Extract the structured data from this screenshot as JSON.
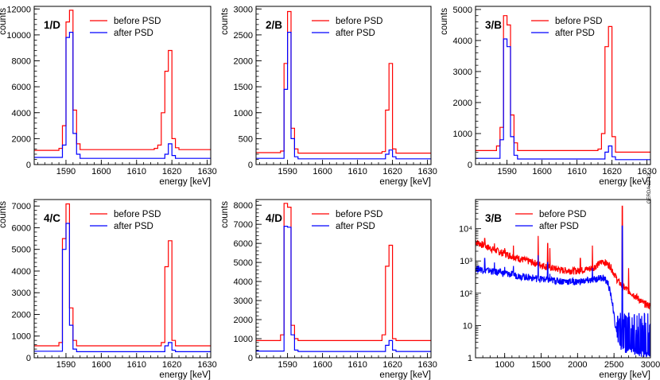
{
  "colors": {
    "before": "#ff0000",
    "after": "#0000ff",
    "axis": "#000000"
  },
  "side_label": "GERDA 12-12",
  "chart_data": [
    {
      "type": "histogram",
      "id": "p1",
      "panel_label": "1/D",
      "xlabel": "energy [keV]",
      "ylabel": "counts",
      "xlim": [
        1581,
        1631
      ],
      "ylim": [
        0,
        12200
      ],
      "xticks": [
        1590,
        1600,
        1610,
        1620,
        1630
      ],
      "yticks": [
        0,
        2000,
        4000,
        6000,
        8000,
        10000,
        12000
      ],
      "legend": [
        "before PSD",
        "after PSD"
      ],
      "series": [
        {
          "name": "before PSD",
          "bins": [
            [
              1581,
              1588,
              1100
            ],
            [
              1588,
              1589,
              1250
            ],
            [
              1589,
              1590,
              3000
            ],
            [
              1590,
              1591,
              11000
            ],
            [
              1591,
              1592,
              11900
            ],
            [
              1592,
              1593,
              4200
            ],
            [
              1593,
              1594,
              1600
            ],
            [
              1594,
              1615,
              1150
            ],
            [
              1615,
              1616,
              1250
            ],
            [
              1616,
              1617,
              1500
            ],
            [
              1617,
              1618,
              4000
            ],
            [
              1618,
              1619,
              7200
            ],
            [
              1619,
              1620,
              8800
            ],
            [
              1620,
              1621,
              2000
            ],
            [
              1621,
              1622,
              1300
            ],
            [
              1622,
              1631,
              1150
            ]
          ]
        },
        {
          "name": "after PSD",
          "bins": [
            [
              1581,
              1589,
              550
            ],
            [
              1589,
              1590,
              1500
            ],
            [
              1590,
              1591,
              9800
            ],
            [
              1591,
              1592,
              10200
            ],
            [
              1592,
              1593,
              2400
            ],
            [
              1593,
              1594,
              800
            ],
            [
              1594,
              1618,
              480
            ],
            [
              1618,
              1619,
              800
            ],
            [
              1619,
              1620,
              1600
            ],
            [
              1620,
              1621,
              700
            ],
            [
              1621,
              1631,
              480
            ]
          ]
        }
      ]
    },
    {
      "type": "histogram",
      "id": "p2",
      "panel_label": "2/B",
      "xlabel": "energy [keV]",
      "ylabel": "counts",
      "xlim": [
        1581,
        1631
      ],
      "ylim": [
        0,
        3050
      ],
      "xticks": [
        1590,
        1600,
        1610,
        1620,
        1630
      ],
      "yticks": [
        0,
        500,
        1000,
        1500,
        2000,
        2500,
        3000
      ],
      "legend": [
        "before PSD",
        "after PSD"
      ],
      "series": [
        {
          "name": "before PSD",
          "bins": [
            [
              1581,
              1588,
              230
            ],
            [
              1588,
              1589,
              260
            ],
            [
              1589,
              1590,
              1950
            ],
            [
              1590,
              1591,
              2950
            ],
            [
              1591,
              1592,
              700
            ],
            [
              1592,
              1593,
              300
            ],
            [
              1593,
              1617,
              220
            ],
            [
              1617,
              1618,
              250
            ],
            [
              1618,
              1619,
              1050
            ],
            [
              1619,
              1620,
              1950
            ],
            [
              1620,
              1621,
              300
            ],
            [
              1621,
              1631,
              220
            ]
          ]
        },
        {
          "name": "after PSD",
          "bins": [
            [
              1581,
              1589,
              120
            ],
            [
              1589,
              1590,
              1450
            ],
            [
              1590,
              1591,
              2550
            ],
            [
              1591,
              1592,
              500
            ],
            [
              1592,
              1593,
              150
            ],
            [
              1593,
              1618,
              110
            ],
            [
              1618,
              1619,
              200
            ],
            [
              1619,
              1620,
              280
            ],
            [
              1620,
              1621,
              150
            ],
            [
              1621,
              1631,
              110
            ]
          ]
        }
      ]
    },
    {
      "type": "histogram",
      "id": "p3",
      "panel_label": "3/B",
      "xlabel": "energy [keV]",
      "ylabel": "counts",
      "xlim": [
        1581,
        1631
      ],
      "ylim": [
        0,
        5100
      ],
      "xticks": [
        1590,
        1600,
        1610,
        1620,
        1630
      ],
      "yticks": [
        0,
        1000,
        2000,
        3000,
        4000,
        5000
      ],
      "legend": [
        "before PSD",
        "after PSD"
      ],
      "series": [
        {
          "name": "before PSD",
          "bins": [
            [
              1581,
              1587,
              450
            ],
            [
              1587,
              1588,
              600
            ],
            [
              1588,
              1589,
              1200
            ],
            [
              1589,
              1590,
              4800
            ],
            [
              1590,
              1591,
              4500
            ],
            [
              1591,
              1592,
              1600
            ],
            [
              1592,
              1593,
              700
            ],
            [
              1593,
              1616,
              450
            ],
            [
              1616,
              1617,
              500
            ],
            [
              1617,
              1618,
              1000
            ],
            [
              1618,
              1619,
              3800
            ],
            [
              1619,
              1620,
              4450
            ],
            [
              1620,
              1621,
              900
            ],
            [
              1621,
              1631,
              400
            ]
          ]
        },
        {
          "name": "after PSD",
          "bins": [
            [
              1581,
              1588,
              200
            ],
            [
              1588,
              1589,
              800
            ],
            [
              1589,
              1590,
              4050
            ],
            [
              1590,
              1591,
              3800
            ],
            [
              1591,
              1592,
              900
            ],
            [
              1592,
              1593,
              300
            ],
            [
              1593,
              1618,
              180
            ],
            [
              1618,
              1619,
              400
            ],
            [
              1619,
              1620,
              600
            ],
            [
              1620,
              1621,
              250
            ],
            [
              1621,
              1631,
              160
            ]
          ]
        }
      ]
    },
    {
      "type": "histogram",
      "id": "p4",
      "panel_label": "4/C",
      "xlabel": "energy [keV]",
      "ylabel": "counts",
      "xlim": [
        1581,
        1631
      ],
      "ylim": [
        0,
        7300
      ],
      "xticks": [
        1590,
        1600,
        1610,
        1620,
        1630
      ],
      "yticks": [
        0,
        1000,
        2000,
        3000,
        4000,
        5000,
        6000,
        7000
      ],
      "legend": [
        "before PSD",
        "after PSD"
      ],
      "series": [
        {
          "name": "before PSD",
          "bins": [
            [
              1581,
              1588,
              550
            ],
            [
              1588,
              1589,
              700
            ],
            [
              1589,
              1590,
              5500
            ],
            [
              1590,
              1591,
              7100
            ],
            [
              1591,
              1592,
              2300
            ],
            [
              1592,
              1593,
              800
            ],
            [
              1593,
              1617,
              550
            ],
            [
              1617,
              1618,
              700
            ],
            [
              1618,
              1619,
              4200
            ],
            [
              1619,
              1620,
              5400
            ],
            [
              1620,
              1621,
              800
            ],
            [
              1621,
              1631,
              550
            ]
          ]
        },
        {
          "name": "after PSD",
          "bins": [
            [
              1581,
              1589,
              300
            ],
            [
              1589,
              1590,
              5000
            ],
            [
              1590,
              1591,
              6200
            ],
            [
              1591,
              1592,
              1500
            ],
            [
              1592,
              1593,
              400
            ],
            [
              1593,
              1618,
              280
            ],
            [
              1618,
              1619,
              550
            ],
            [
              1619,
              1620,
              700
            ],
            [
              1620,
              1621,
              350
            ],
            [
              1621,
              1631,
              280
            ]
          ]
        }
      ]
    },
    {
      "type": "histogram",
      "id": "p5",
      "panel_label": "4/D",
      "xlabel": "energy [keV]",
      "ylabel": "counts",
      "xlim": [
        1581,
        1631
      ],
      "ylim": [
        0,
        8300
      ],
      "xticks": [
        1590,
        1600,
        1610,
        1620,
        1630
      ],
      "yticks": [
        0,
        1000,
        2000,
        3000,
        4000,
        5000,
        6000,
        7000,
        8000
      ],
      "legend": [
        "before PSD",
        "after PSD"
      ],
      "series": [
        {
          "name": "before PSD",
          "bins": [
            [
              1581,
              1588,
              900
            ],
            [
              1588,
              1589,
              1200
            ],
            [
              1589,
              1590,
              8100
            ],
            [
              1590,
              1591,
              7900
            ],
            [
              1591,
              1592,
              1700
            ],
            [
              1592,
              1593,
              1000
            ],
            [
              1593,
              1617,
              900
            ],
            [
              1617,
              1618,
              1200
            ],
            [
              1618,
              1619,
              4800
            ],
            [
              1619,
              1620,
              5900
            ],
            [
              1620,
              1621,
              1000
            ],
            [
              1621,
              1631,
              900
            ]
          ]
        },
        {
          "name": "after PSD",
          "bins": [
            [
              1581,
              1589,
              350
            ],
            [
              1589,
              1590,
              6900
            ],
            [
              1590,
              1591,
              6850
            ],
            [
              1591,
              1592,
              1200
            ],
            [
              1592,
              1593,
              400
            ],
            [
              1593,
              1618,
              330
            ],
            [
              1618,
              1619,
              650
            ],
            [
              1619,
              1620,
              900
            ],
            [
              1620,
              1621,
              400
            ],
            [
              1621,
              1631,
              330
            ]
          ]
        }
      ]
    },
    {
      "type": "histogram",
      "id": "p6",
      "panel_label": "3/B",
      "yscale": "log",
      "xlabel": "energy [keV]",
      "ylabel": "",
      "xlim": [
        600,
        3000
      ],
      "ylim": [
        1,
        80000
      ],
      "xticks": [
        1000,
        1500,
        2000,
        2500,
        3000
      ],
      "yticks": [
        1,
        10,
        100,
        1000,
        10000
      ],
      "ytick_labels": [
        "1",
        "10",
        "10²",
        "10³",
        "10⁴"
      ],
      "legend": [
        "before PSD",
        "after PSD"
      ],
      "series": [
        {
          "name": "before PSD",
          "kind": "continuum",
          "points": [
            [
              600,
              4000
            ],
            [
              800,
              2500
            ],
            [
              1000,
              1700
            ],
            [
              1200,
              1200
            ],
            [
              1400,
              900
            ],
            [
              1600,
              650
            ],
            [
              1800,
              520
            ],
            [
              2000,
              500
            ],
            [
              2200,
              600
            ],
            [
              2350,
              1000
            ],
            [
              2450,
              700
            ],
            [
              2550,
              250
            ],
            [
              2620,
              160
            ],
            [
              2700,
              120
            ],
            [
              2800,
              80
            ],
            [
              2900,
              50
            ],
            [
              3000,
              40
            ]
          ],
          "peaks": [
            [
              727,
              5000
            ],
            [
              860,
              3500
            ],
            [
              1000,
              2500
            ],
            [
              1120,
              3000
            ],
            [
              1460,
              6000
            ],
            [
              1590,
              3500
            ],
            [
              1620,
              2500
            ],
            [
              2039,
              1200
            ],
            [
              2204,
              3000
            ],
            [
              2614,
              50000
            ],
            [
              2700,
              600
            ]
          ]
        },
        {
          "name": "after PSD",
          "kind": "continuum",
          "points": [
            [
              600,
              600
            ],
            [
              800,
              500
            ],
            [
              1000,
              420
            ],
            [
              1200,
              350
            ],
            [
              1400,
              300
            ],
            [
              1600,
              260
            ],
            [
              1800,
              240
            ],
            [
              2000,
              230
            ],
            [
              2200,
              260
            ],
            [
              2350,
              320
            ],
            [
              2420,
              200
            ],
            [
              2480,
              50
            ],
            [
              2520,
              8
            ],
            [
              2560,
              3
            ],
            [
              2620,
              2
            ],
            [
              2800,
              1.5
            ],
            [
              3000,
              1.2
            ]
          ],
          "peaks": [
            [
              727,
              1200
            ],
            [
              860,
              900
            ],
            [
              1000,
              650
            ],
            [
              1120,
              700
            ],
            [
              1460,
              1500
            ],
            [
              1590,
              900
            ],
            [
              1620,
              400
            ],
            [
              2204,
              600
            ],
            [
              2614,
              12000
            ],
            [
              2700,
              15
            ]
          ]
        }
      ]
    }
  ]
}
